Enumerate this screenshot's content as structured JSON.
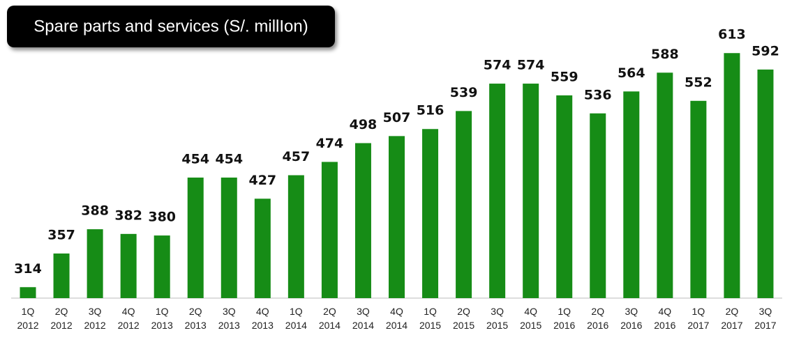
{
  "chart_data": {
    "type": "bar",
    "title": "Spare parts and services (S/. millIon)",
    "categories": [
      "1Q 2012",
      "2Q 2012",
      "3Q 2012",
      "4Q 2012",
      "1Q 2013",
      "2Q 2013",
      "3Q 2013",
      "4Q 2013",
      "1Q 2014",
      "2Q 2014",
      "3Q 2014",
      "4Q 2014",
      "1Q 2015",
      "2Q 2015",
      "3Q 2015",
      "4Q 2015",
      "1Q 2016",
      "2Q 2016",
      "3Q 2016",
      "4Q 2016",
      "1Q 2017",
      "2Q 2017",
      "3Q 2017"
    ],
    "values": [
      314,
      357,
      388,
      382,
      380,
      454,
      454,
      427,
      457,
      474,
      498,
      507,
      516,
      539,
      574,
      574,
      559,
      536,
      564,
      588,
      552,
      613,
      592
    ],
    "color": "#168c16",
    "ylim": [
      300,
      660
    ]
  }
}
